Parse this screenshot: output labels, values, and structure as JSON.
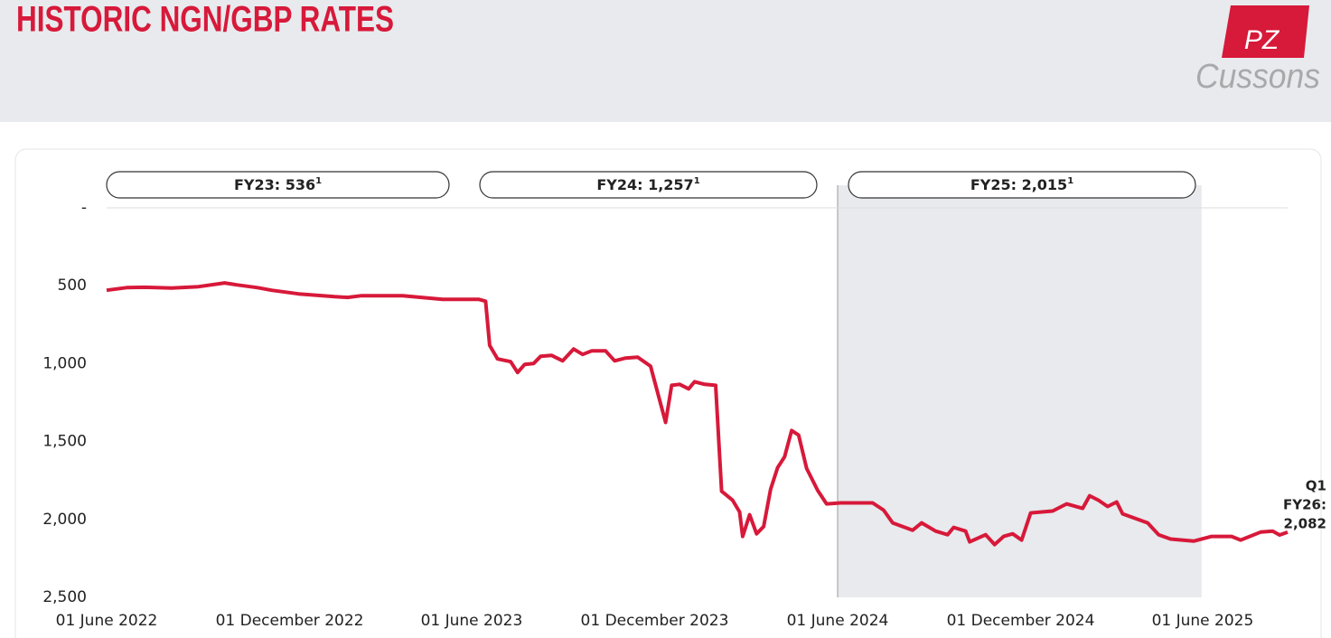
{
  "header": {
    "title": "HISTORIC NGN/GBP RATES",
    "logo": {
      "mark": "PZ",
      "name": "Cussons"
    }
  },
  "chart_data": {
    "type": "line",
    "color": "#d7193a",
    "inverted": true,
    "ylim": [
      0,
      2500
    ],
    "yticks": [
      {
        "value": 0,
        "label": "-"
      },
      500,
      {
        "value": 1000,
        "label": "1,000"
      },
      {
        "value": 1500,
        "label": "1,500"
      },
      {
        "value": 2000,
        "label": "2,000"
      },
      {
        "value": 2500,
        "label": "2,500"
      }
    ],
    "xlim": [
      "2022-06-01",
      "2025-08-25"
    ],
    "xticks": [
      {
        "value": "2022-06-01",
        "label": "01 June 2022"
      },
      {
        "value": "2022-12-01",
        "label": "01 December 2022"
      },
      {
        "value": "2023-06-01",
        "label": "01 June 2023"
      },
      {
        "value": "2023-12-01",
        "label": "01 December 2023"
      },
      {
        "value": "2024-06-01",
        "label": "01 June 2024"
      },
      {
        "value": "2024-12-01",
        "label": "01 December 2024"
      },
      {
        "value": "2025-06-01",
        "label": "01 June 2025"
      }
    ],
    "highlight": [
      "2024-06-01",
      "2025-05-31"
    ],
    "fy_labels": [
      {
        "text": "FY23: 536",
        "note": "1"
      },
      {
        "text": "FY24: 1,257",
        "note": "1"
      },
      {
        "text": "FY25: 2,015",
        "note": "1"
      }
    ],
    "annotation": [
      "Q1",
      "FY26:",
      "2,082"
    ],
    "x": [
      "2022-06-01",
      "2022-06-21",
      "2022-07-09",
      "2022-08-05",
      "2022-09-01",
      "2022-09-27",
      "2022-10-09",
      "2022-10-30",
      "2022-11-13",
      "2022-12-10",
      "2023-01-15",
      "2023-01-28",
      "2023-02-11",
      "2023-03-24",
      "2023-05-03",
      "2023-06-08",
      "2023-06-15",
      "2023-06-19",
      "2023-06-27",
      "2023-07-10",
      "2023-07-17",
      "2023-07-24",
      "2023-08-02",
      "2023-08-09",
      "2023-08-20",
      "2023-08-31",
      "2023-09-11",
      "2023-09-20",
      "2023-09-29",
      "2023-10-13",
      "2023-10-22",
      "2023-11-02",
      "2023-11-14",
      "2023-11-27",
      "2023-12-12",
      "2023-12-18",
      "2023-12-26",
      "2024-01-04",
      "2024-01-10",
      "2024-01-20",
      "2024-01-31",
      "2024-02-06",
      "2024-02-17",
      "2024-02-24",
      "2024-02-27",
      "2024-03-05",
      "2024-03-12",
      "2024-03-19",
      "2024-03-26",
      "2024-04-02",
      "2024-04-09",
      "2024-04-16",
      "2024-04-23",
      "2024-05-01",
      "2024-05-12",
      "2024-05-21",
      "2024-06-04",
      "2024-07-06",
      "2024-07-17",
      "2024-07-26",
      "2024-08-15",
      "2024-08-24",
      "2024-09-07",
      "2024-09-19",
      "2024-09-25",
      "2024-10-07",
      "2024-10-11",
      "2024-10-27",
      "2024-11-05",
      "2024-11-14",
      "2024-11-23",
      "2024-12-02",
      "2024-12-11",
      "2025-01-02",
      "2025-01-16",
      "2025-02-01",
      "2025-02-08",
      "2025-02-17",
      "2025-02-26",
      "2025-03-07",
      "2025-03-13",
      "2025-04-07",
      "2025-04-18",
      "2025-04-30",
      "2025-05-23",
      "2025-06-10",
      "2025-06-30",
      "2025-07-09",
      "2025-07-29",
      "2025-08-10",
      "2025-08-17",
      "2025-08-25"
    ],
    "values": [
      529,
      512,
      510,
      515,
      506,
      482,
      494,
      512,
      529,
      552,
      570,
      575,
      564,
      564,
      587,
      587,
      599,
      883,
      970,
      987,
      1057,
      1005,
      999,
      953,
      947,
      982,
      906,
      941,
      918,
      918,
      982,
      964,
      958,
      1017,
      1377,
      1139,
      1133,
      1162,
      1116,
      1133,
      1139,
      1819,
      1877,
      1952,
      2109,
      1970,
      2092,
      2046,
      1807,
      1667,
      1598,
      1429,
      1458,
      1673,
      1813,
      1900,
      1894,
      1894,
      1940,
      2022,
      2069,
      2022,
      2075,
      2098,
      2051,
      2075,
      2144,
      2098,
      2161,
      2109,
      2092,
      2132,
      1958,
      1946,
      1900,
      1929,
      1848,
      1877,
      1917,
      1888,
      1964,
      2022,
      2098,
      2126,
      2139,
      2109,
      2109,
      2132,
      2081,
      2075,
      2100,
      2082
    ]
  }
}
